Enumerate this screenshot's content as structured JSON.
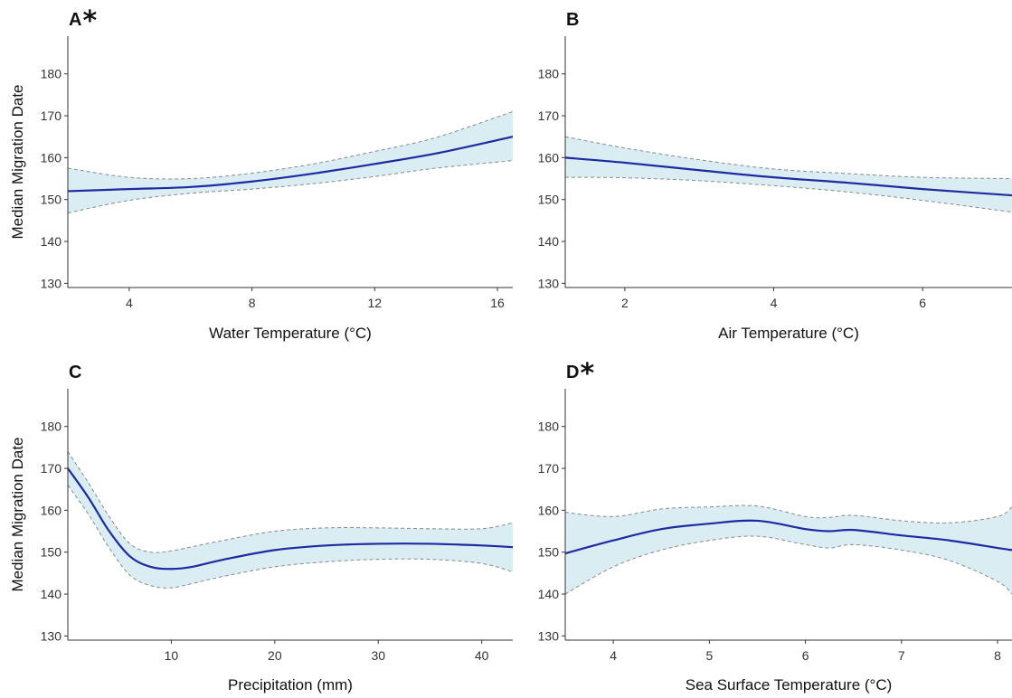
{
  "colors": {
    "fit_line": "#1f2aa0",
    "ci_fill": "#d9edf3",
    "ci_border": "#8a8a8a",
    "axis": "#333333"
  },
  "chart_data": [
    {
      "type": "line",
      "panel_label": "A",
      "significance_marker": "*",
      "xlabel": "Water Temperature (°C)",
      "ylabel": "Median Migration Date",
      "xlim": [
        2,
        16.5
      ],
      "ylim": [
        129,
        189
      ],
      "x_ticks": [
        4,
        8,
        12,
        16
      ],
      "y_ticks": [
        130,
        140,
        150,
        160,
        170,
        180
      ],
      "series": [
        {
          "x": [
            2,
            4,
            6,
            8,
            10,
            12,
            14,
            16.5
          ],
          "fit": [
            152.0,
            152.5,
            153.0,
            154.3,
            156.2,
            158.5,
            161.0,
            165.0
          ],
          "lower": [
            146.8,
            149.8,
            151.5,
            152.5,
            153.8,
            155.5,
            157.5,
            159.3
          ],
          "upper": [
            157.5,
            155.3,
            155.0,
            156.3,
            158.5,
            161.5,
            164.8,
            171.0
          ]
        }
      ]
    },
    {
      "type": "line",
      "panel_label": "B",
      "significance_marker": "",
      "xlabel": "Air Temperature (°C)",
      "ylabel": "",
      "xlim": [
        1.2,
        7.2
      ],
      "ylim": [
        129,
        189
      ],
      "x_ticks": [
        2,
        4,
        6
      ],
      "y_ticks": [
        130,
        140,
        150,
        160,
        170,
        180
      ],
      "series": [
        {
          "x": [
            1.2,
            2,
            3,
            4,
            5,
            6,
            7.2
          ],
          "fit": [
            160.0,
            158.8,
            157.0,
            155.3,
            154.0,
            152.5,
            151.0
          ],
          "lower": [
            155.3,
            155.2,
            154.5,
            153.3,
            151.8,
            149.8,
            147.0
          ],
          "upper": [
            165.0,
            162.3,
            159.5,
            157.3,
            156.2,
            155.3,
            155.0
          ]
        }
      ]
    },
    {
      "type": "line",
      "panel_label": "C",
      "significance_marker": "",
      "xlabel": "Precipitation (mm)",
      "ylabel": "Median Migration Date",
      "xlim": [
        0,
        43
      ],
      "ylim": [
        129,
        189
      ],
      "x_ticks": [
        10,
        20,
        30,
        40
      ],
      "y_ticks": [
        130,
        140,
        150,
        160,
        170,
        180
      ],
      "series": [
        {
          "x": [
            0,
            2,
            4,
            6,
            8,
            10,
            12,
            15,
            20,
            25,
            30,
            35,
            40,
            43
          ],
          "fit": [
            170.0,
            163.0,
            155.0,
            149.0,
            146.5,
            146.0,
            146.5,
            148.2,
            150.5,
            151.6,
            152.0,
            152.0,
            151.6,
            151.2
          ],
          "lower": [
            166.0,
            159.0,
            151.0,
            144.5,
            142.0,
            141.5,
            142.5,
            144.2,
            146.5,
            147.7,
            148.3,
            148.3,
            147.3,
            145.3
          ],
          "upper": [
            174.0,
            166.5,
            158.5,
            152.0,
            150.0,
            150.3,
            151.3,
            152.8,
            155.0,
            155.8,
            155.8,
            155.6,
            155.6,
            157.0
          ]
        }
      ]
    },
    {
      "type": "line",
      "panel_label": "D",
      "significance_marker": "*",
      "xlabel": "Sea Surface Temperature (°C)",
      "ylabel": "",
      "xlim": [
        3.5,
        8.15
      ],
      "ylim": [
        129,
        189
      ],
      "x_ticks": [
        4,
        5,
        6,
        7,
        8
      ],
      "y_ticks": [
        130,
        140,
        150,
        160,
        170,
        180
      ],
      "series": [
        {
          "x": [
            3.5,
            4,
            4.5,
            5,
            5.5,
            6,
            6.25,
            6.5,
            7,
            7.5,
            8,
            8.15
          ],
          "fit": [
            149.7,
            152.8,
            155.5,
            156.8,
            157.5,
            155.5,
            155.0,
            155.3,
            154.0,
            152.8,
            151.0,
            150.5
          ],
          "lower": [
            140.0,
            146.5,
            150.5,
            152.8,
            153.8,
            151.8,
            151.0,
            151.8,
            150.5,
            148.0,
            143.0,
            140.0
          ],
          "upper": [
            159.5,
            158.5,
            160.3,
            160.8,
            161.0,
            158.5,
            158.3,
            158.8,
            157.5,
            157.0,
            158.5,
            160.8
          ]
        }
      ]
    }
  ]
}
